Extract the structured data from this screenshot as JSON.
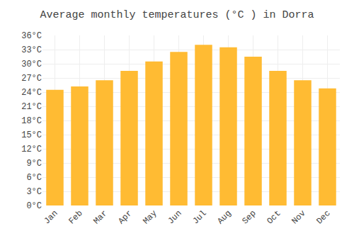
{
  "chart_data": {
    "type": "bar",
    "title": "Average monthly temperatures (°C ) in Dorra",
    "categories": [
      "Jan",
      "Feb",
      "Mar",
      "Apr",
      "May",
      "Jun",
      "Jul",
      "Aug",
      "Sep",
      "Oct",
      "Nov",
      "Dec"
    ],
    "values": [
      24.5,
      25.2,
      26.5,
      28.5,
      30.5,
      32.5,
      34.0,
      33.5,
      31.5,
      28.5,
      26.5,
      24.8
    ],
    "color": "#FFBB33",
    "ylim": [
      0,
      36
    ],
    "yticks": [
      {
        "value": 0,
        "label": "0°C"
      },
      {
        "value": 3,
        "label": "3°C"
      },
      {
        "value": 6,
        "label": "6°C"
      },
      {
        "value": 9,
        "label": "9°C"
      },
      {
        "value": 12,
        "label": "12°C"
      },
      {
        "value": 15,
        "label": "15°C"
      },
      {
        "value": 18,
        "label": "18°C"
      },
      {
        "value": 21,
        "label": "21°C"
      },
      {
        "value": 24,
        "label": "24°C"
      },
      {
        "value": 27,
        "label": "27°C"
      },
      {
        "value": 30,
        "label": "30°C"
      },
      {
        "value": 33,
        "label": "33°C"
      },
      {
        "value": 36,
        "label": "36°C"
      }
    ],
    "grid": true
  }
}
